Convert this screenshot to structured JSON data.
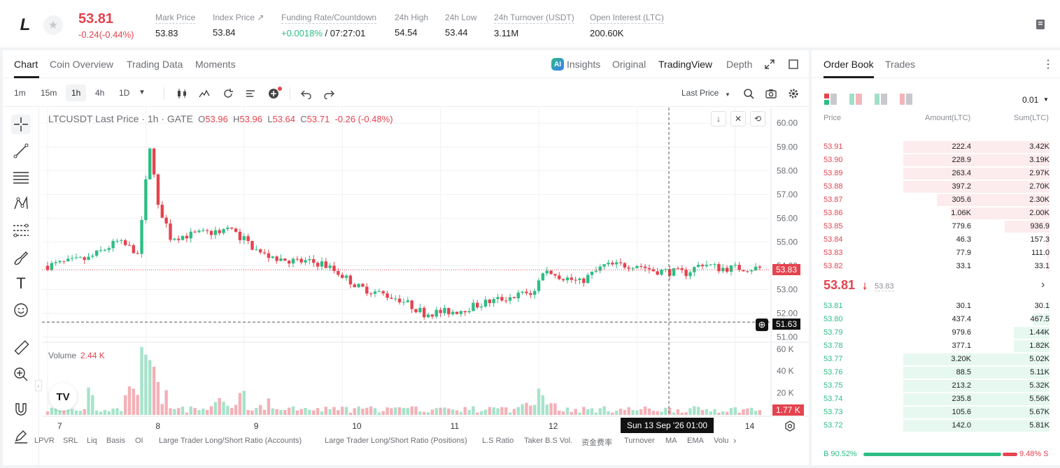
{
  "header": {
    "coin_logo": "L",
    "last_price": "53.81",
    "change": "-0.24(-0.44%)",
    "stats": [
      {
        "label": "Mark Price",
        "value": "53.83"
      },
      {
        "label": "Index Price ↗",
        "value": "53.84"
      },
      {
        "label": "Funding Rate/Countdown",
        "value_green": "+0.0018%",
        "value": "/ 07:27:01"
      },
      {
        "label": "24h High",
        "value": "54.54"
      },
      {
        "label": "24h Low",
        "value": "53.44"
      },
      {
        "label": "24h Turnover (USDT)",
        "value": "3.11M"
      },
      {
        "label": "Open Interest (LTC)",
        "value": "200.60K"
      }
    ]
  },
  "chart_tabs": [
    "Chart",
    "Coin Overview",
    "Trading Data",
    "Moments"
  ],
  "view_tabs": [
    "Insights",
    "Original",
    "TradingView",
    "Depth"
  ],
  "ai_badge": "AI",
  "timeframes": [
    "1m",
    "15m",
    "1h",
    "4h",
    "1D"
  ],
  "price_type": "Last Price",
  "legend": {
    "symbol": "LTCUSDT Last Price · 1h · GATE",
    "o_label": "O",
    "o": "53.96",
    "h_label": "H",
    "h": "53.96",
    "l_label": "L",
    "l": "53.64",
    "c_label": "C",
    "c": "53.71",
    "chg": "-0.26 (-0.48%)"
  },
  "volume_legend": {
    "label": "Volume",
    "value": "2.44 K"
  },
  "tags": {
    "last_price": "53.83",
    "cursor_price": "51.63",
    "last_volume": "1.77 K"
  },
  "crosshair_time": "Sun 13 Sep '26   01:00",
  "tv_logo": "TV",
  "indicators": [
    "LPVR",
    "SRL",
    "Liq",
    "Basis",
    "OI",
    "Large Trader Long/Short Ratio (Accounts)",
    "Large Trader Long/Short Ratio (Positions)",
    "L.S Ratio",
    "Taker B.S Vol.",
    "资金费率",
    "Turnover",
    "MA",
    "EMA",
    "Volu"
  ],
  "chart_data": {
    "type": "candlestick",
    "price_axis": [
      "60.00",
      "59.00",
      "58.00",
      "57.00",
      "56.00",
      "55.00",
      "54.00",
      "53.00",
      "52.00",
      "51.00"
    ],
    "price_range": [
      50.9,
      60.3
    ],
    "volume_axis": [
      "60 K",
      "40 K",
      "20 K"
    ],
    "volume_range": [
      0,
      65
    ],
    "x_ticks": [
      "7",
      "8",
      "9",
      "10",
      "11",
      "12",
      "13",
      "14"
    ],
    "x_tick_positions_candles": [
      0,
      24,
      48,
      72,
      96,
      120,
      144,
      168
    ],
    "last_price_line": 53.83,
    "cursor_price_line": 51.63,
    "anchors": [
      [
        0,
        54.0
      ],
      [
        10,
        54.3
      ],
      [
        17,
        55.0
      ],
      [
        22,
        54.6
      ],
      [
        24,
        57.5
      ],
      [
        25,
        59.1
      ],
      [
        27,
        56.5
      ],
      [
        30,
        55.2
      ],
      [
        40,
        55.4
      ],
      [
        44,
        55.6
      ],
      [
        48,
        55.1
      ],
      [
        52,
        54.5
      ],
      [
        60,
        54.2
      ],
      [
        67,
        54.1
      ],
      [
        72,
        53.6
      ],
      [
        76,
        53.1
      ],
      [
        86,
        52.6
      ],
      [
        92,
        52.0
      ],
      [
        100,
        52.1
      ],
      [
        108,
        52.5
      ],
      [
        116,
        52.8
      ],
      [
        119,
        52.9
      ],
      [
        121,
        53.8
      ],
      [
        130,
        53.3
      ],
      [
        136,
        54.0
      ],
      [
        144,
        54.05
      ],
      [
        148,
        53.8
      ],
      [
        156,
        53.7
      ],
      [
        160,
        54.1
      ],
      [
        164,
        53.9
      ]
    ],
    "volume_spikes": {
      "23": 62,
      "24": 55,
      "25": 50,
      "26": 44,
      "27": 30,
      "20": 26,
      "19": 18,
      "10": 25,
      "11": 18,
      "47": 20,
      "48": 22,
      "24_alt": 0,
      "120": 24,
      "121": 18
    }
  },
  "orderbook": {
    "tabs": [
      "Order Book",
      "Trades"
    ],
    "precision": "0.01",
    "headers": [
      "Price",
      "Amount(LTC)",
      "Sum(LTC)"
    ],
    "asks": [
      {
        "price": "53.91",
        "amount": "222.4",
        "sum": "3.42K",
        "depth": 0.95
      },
      {
        "price": "53.90",
        "amount": "228.9",
        "sum": "3.19K",
        "depth": 0.95
      },
      {
        "price": "53.89",
        "amount": "263.4",
        "sum": "2.97K",
        "depth": 0.95
      },
      {
        "price": "53.88",
        "amount": "397.2",
        "sum": "2.70K",
        "depth": 0.95
      },
      {
        "price": "53.87",
        "amount": "305.6",
        "sum": "2.30K",
        "depth": 0.73
      },
      {
        "price": "53.86",
        "amount": "1.06K",
        "sum": "2.00K",
        "depth": 0.64
      },
      {
        "price": "53.85",
        "amount": "779.6",
        "sum": "936.9",
        "depth": 0.29
      },
      {
        "price": "53.84",
        "amount": "46.3",
        "sum": "157.3",
        "depth": 0.02
      },
      {
        "price": "53.83",
        "amount": "77.9",
        "sum": "111.0",
        "depth": 0.02
      },
      {
        "price": "53.82",
        "amount": "33.1",
        "sum": "33.1",
        "depth": 0.01
      }
    ],
    "mid": {
      "price": "53.81",
      "mark": "53.83"
    },
    "bids": [
      {
        "price": "53.81",
        "amount": "30.1",
        "sum": "30.1",
        "depth": 0.01
      },
      {
        "price": "53.80",
        "amount": "437.4",
        "sum": "467.5",
        "depth": 0.11
      },
      {
        "price": "53.79",
        "amount": "979.6",
        "sum": "1.44K",
        "depth": 0.23
      },
      {
        "price": "53.78",
        "amount": "377.1",
        "sum": "1.82K",
        "depth": 0.23
      },
      {
        "price": "53.77",
        "amount": "3.20K",
        "sum": "5.02K",
        "depth": 0.95
      },
      {
        "price": "53.76",
        "amount": "88.5",
        "sum": "5.11K",
        "depth": 0.95
      },
      {
        "price": "53.75",
        "amount": "213.2",
        "sum": "5.32K",
        "depth": 0.95
      },
      {
        "price": "53.74",
        "amount": "235.8",
        "sum": "5.56K",
        "depth": 0.95
      },
      {
        "price": "53.73",
        "amount": "105.6",
        "sum": "5.67K",
        "depth": 0.95
      },
      {
        "price": "53.72",
        "amount": "142.0",
        "sum": "5.81K",
        "depth": 0.95
      }
    ],
    "ratio": {
      "buy_label": "B",
      "buy": "90.52%",
      "sell": "9.48%",
      "sell_label": "S",
      "buy_fraction": 0.9052
    }
  },
  "colors": {
    "up": "#2dbd85",
    "down": "#e5434f"
  }
}
